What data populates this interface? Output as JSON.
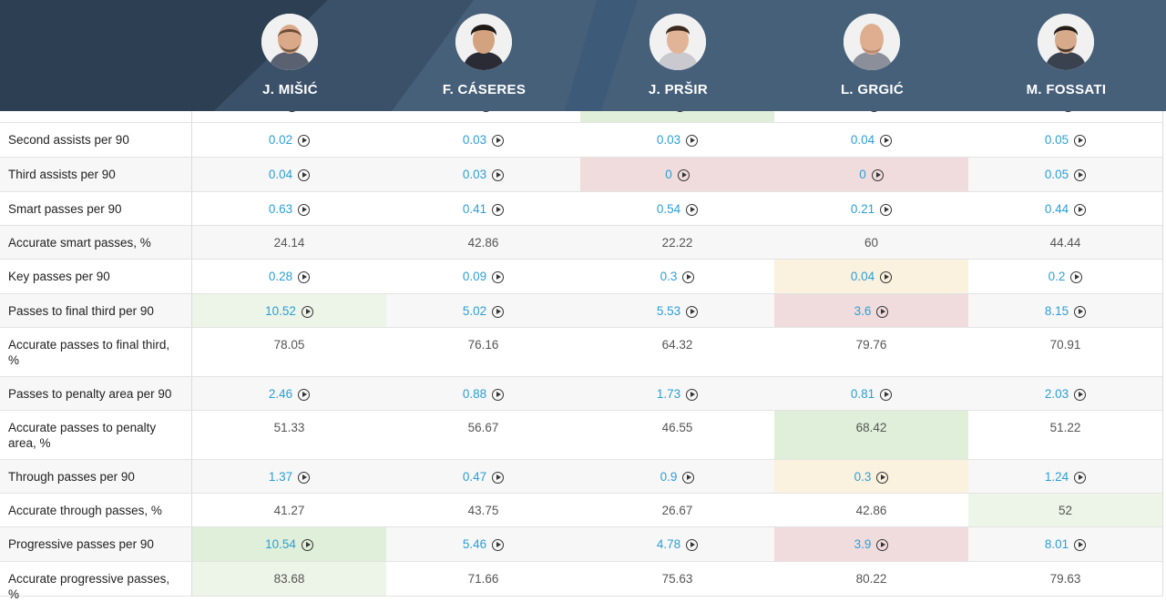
{
  "players": [
    {
      "name": "J. MIŠIĆ"
    },
    {
      "name": "F. CÁSERES"
    },
    {
      "name": "J. PRŠIR"
    },
    {
      "name": "L. GRGIĆ"
    },
    {
      "name": "M. FOSSATI"
    }
  ],
  "colors": {
    "header": "#46607a",
    "link": "#2a9fd8",
    "good": "#e0efd9",
    "bad": "#f0dcdc",
    "mid": "#faf1de"
  },
  "partial_row": {
    "values": [
      {
        "v": "",
        "link": true,
        "bg": "none"
      },
      {
        "v": "",
        "link": true,
        "bg": "none"
      },
      {
        "v": "",
        "link": true,
        "bg": "green"
      },
      {
        "v": "",
        "link": true,
        "bg": "none"
      },
      {
        "v": "",
        "link": true,
        "bg": "none"
      }
    ]
  },
  "rows": [
    {
      "label": "Second assists per 90",
      "values": [
        {
          "v": "0.02",
          "link": true,
          "bg": "none"
        },
        {
          "v": "0.03",
          "link": true,
          "bg": "none"
        },
        {
          "v": "0.03",
          "link": true,
          "bg": "none"
        },
        {
          "v": "0.04",
          "link": true,
          "bg": "none"
        },
        {
          "v": "0.05",
          "link": true,
          "bg": "none"
        }
      ]
    },
    {
      "label": "Third assists per 90",
      "values": [
        {
          "v": "0.04",
          "link": true,
          "bg": "none"
        },
        {
          "v": "0.03",
          "link": true,
          "bg": "none"
        },
        {
          "v": "0",
          "link": true,
          "bg": "red"
        },
        {
          "v": "0",
          "link": true,
          "bg": "red"
        },
        {
          "v": "0.05",
          "link": true,
          "bg": "none"
        }
      ]
    },
    {
      "label": "Smart passes per 90",
      "values": [
        {
          "v": "0.63",
          "link": true,
          "bg": "none"
        },
        {
          "v": "0.41",
          "link": true,
          "bg": "none"
        },
        {
          "v": "0.54",
          "link": true,
          "bg": "none"
        },
        {
          "v": "0.21",
          "link": true,
          "bg": "none"
        },
        {
          "v": "0.44",
          "link": true,
          "bg": "none"
        }
      ]
    },
    {
      "label": "Accurate smart passes, %",
      "values": [
        {
          "v": "24.14",
          "link": false,
          "bg": "none"
        },
        {
          "v": "42.86",
          "link": false,
          "bg": "none"
        },
        {
          "v": "22.22",
          "link": false,
          "bg": "none"
        },
        {
          "v": "60",
          "link": false,
          "bg": "none"
        },
        {
          "v": "44.44",
          "link": false,
          "bg": "none"
        }
      ]
    },
    {
      "label": "Key passes per 90",
      "values": [
        {
          "v": "0.28",
          "link": true,
          "bg": "none"
        },
        {
          "v": "0.09",
          "link": true,
          "bg": "none"
        },
        {
          "v": "0.3",
          "link": true,
          "bg": "none"
        },
        {
          "v": "0.04",
          "link": true,
          "bg": "yellow"
        },
        {
          "v": "0.2",
          "link": true,
          "bg": "none"
        }
      ]
    },
    {
      "label": "Passes to final third per 90",
      "values": [
        {
          "v": "10.52",
          "link": true,
          "bg": "lgreen"
        },
        {
          "v": "5.02",
          "link": true,
          "bg": "none"
        },
        {
          "v": "5.53",
          "link": true,
          "bg": "none"
        },
        {
          "v": "3.6",
          "link": true,
          "bg": "red"
        },
        {
          "v": "8.15",
          "link": true,
          "bg": "none"
        }
      ]
    },
    {
      "label": "Accurate passes to final third, %",
      "values": [
        {
          "v": "78.05",
          "link": false,
          "bg": "none"
        },
        {
          "v": "76.16",
          "link": false,
          "bg": "none"
        },
        {
          "v": "64.32",
          "link": false,
          "bg": "none"
        },
        {
          "v": "79.76",
          "link": false,
          "bg": "none"
        },
        {
          "v": "70.91",
          "link": false,
          "bg": "none"
        }
      ]
    },
    {
      "label": "Passes to penalty area per 90",
      "values": [
        {
          "v": "2.46",
          "link": true,
          "bg": "none"
        },
        {
          "v": "0.88",
          "link": true,
          "bg": "none"
        },
        {
          "v": "1.73",
          "link": true,
          "bg": "none"
        },
        {
          "v": "0.81",
          "link": true,
          "bg": "none"
        },
        {
          "v": "2.03",
          "link": true,
          "bg": "none"
        }
      ]
    },
    {
      "label": "Accurate passes to penalty area, %",
      "values": [
        {
          "v": "51.33",
          "link": false,
          "bg": "none"
        },
        {
          "v": "56.67",
          "link": false,
          "bg": "none"
        },
        {
          "v": "46.55",
          "link": false,
          "bg": "none"
        },
        {
          "v": "68.42",
          "link": false,
          "bg": "green"
        },
        {
          "v": "51.22",
          "link": false,
          "bg": "none"
        }
      ]
    },
    {
      "label": "Through passes per 90",
      "values": [
        {
          "v": "1.37",
          "link": true,
          "bg": "none"
        },
        {
          "v": "0.47",
          "link": true,
          "bg": "none"
        },
        {
          "v": "0.9",
          "link": true,
          "bg": "none"
        },
        {
          "v": "0.3",
          "link": true,
          "bg": "yellow"
        },
        {
          "v": "1.24",
          "link": true,
          "bg": "none"
        }
      ]
    },
    {
      "label": "Accurate through passes, %",
      "values": [
        {
          "v": "41.27",
          "link": false,
          "bg": "none"
        },
        {
          "v": "43.75",
          "link": false,
          "bg": "none"
        },
        {
          "v": "26.67",
          "link": false,
          "bg": "none"
        },
        {
          "v": "42.86",
          "link": false,
          "bg": "none"
        },
        {
          "v": "52",
          "link": false,
          "bg": "lgreen"
        }
      ]
    },
    {
      "label": "Progressive passes per 90",
      "values": [
        {
          "v": "10.54",
          "link": true,
          "bg": "green"
        },
        {
          "v": "5.46",
          "link": true,
          "bg": "none"
        },
        {
          "v": "4.78",
          "link": true,
          "bg": "none"
        },
        {
          "v": "3.9",
          "link": true,
          "bg": "red"
        },
        {
          "v": "8.01",
          "link": true,
          "bg": "none"
        }
      ]
    },
    {
      "label": "Accurate progressive passes, %",
      "values": [
        {
          "v": "83.68",
          "link": false,
          "bg": "lgreen"
        },
        {
          "v": "71.66",
          "link": false,
          "bg": "none"
        },
        {
          "v": "75.63",
          "link": false,
          "bg": "none"
        },
        {
          "v": "80.22",
          "link": false,
          "bg": "none"
        },
        {
          "v": "79.63",
          "link": false,
          "bg": "none"
        }
      ]
    }
  ]
}
